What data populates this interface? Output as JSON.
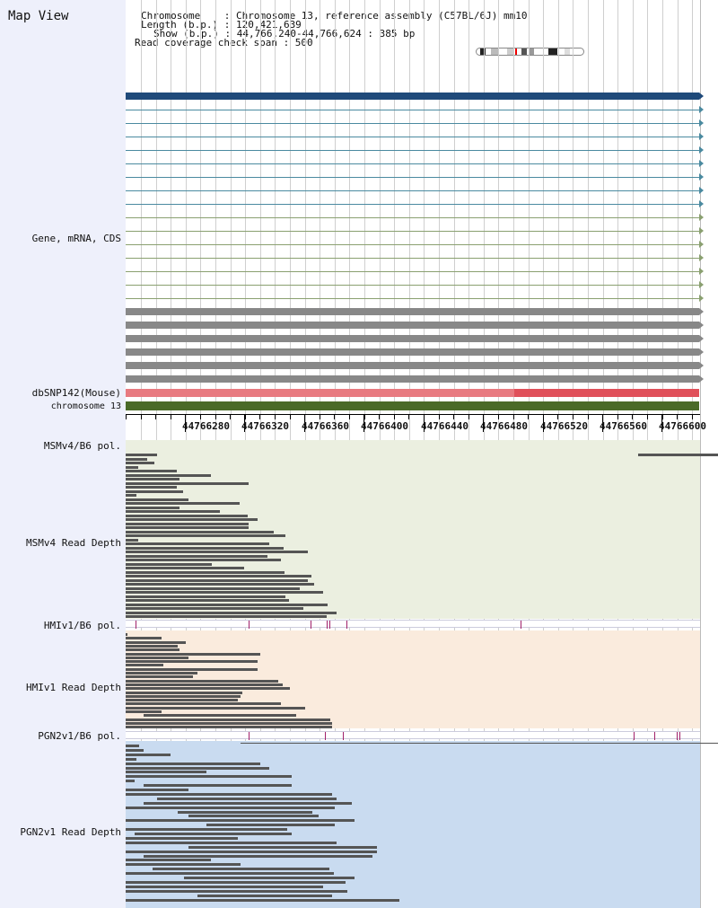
{
  "title": "Map View",
  "header": {
    "line1": "Chromosome    : Chromosome 13, reference assembly (C57BL/6J) mm10",
    "line2": "Length (b.p.) : 120,421,639",
    "line3": "Show (b.p.) : 44,766,240-44,766,624 : 385 bp",
    "line4": "Read coverage check span : 500"
  },
  "labels": {
    "gene": "Gene, mRNA, CDS",
    "dbsnp": "dbSNP142(Mouse)",
    "chromosome": "chromosome 13",
    "msm_pol": "MSMv4/B6 pol.",
    "msm_depth": "MSMv4 Read Depth",
    "hmi_pol": "HMIv1/B6 pol.",
    "hmi_depth": "HMIv1 Read Depth",
    "pgn_pol": "PGN2v1/B6 pol.",
    "pgn_depth": "PGN2v1 Read Depth"
  },
  "axis_ticks": [
    "44766280",
    "44766320",
    "44766360",
    "44766400",
    "44766440",
    "44766480",
    "44766520",
    "44766560",
    "44766600"
  ],
  "colors": {
    "gene_main": "#1f4a7a",
    "mrna": "#4a8aa0",
    "cds": "#8aa070",
    "exon_gray": "#888888",
    "snp_light": "#e87a80",
    "snp_dark": "#e0505a",
    "chrom": "#4a6a28",
    "msm_bg": "#ebefe0",
    "hmi_bg": "#faebdd",
    "pgn_bg": "#c9dbf0",
    "pol_mark": "#a0206a"
  },
  "icons": [
    "chromosome-ideogram-icon",
    "track-arrow-icon"
  ]
}
